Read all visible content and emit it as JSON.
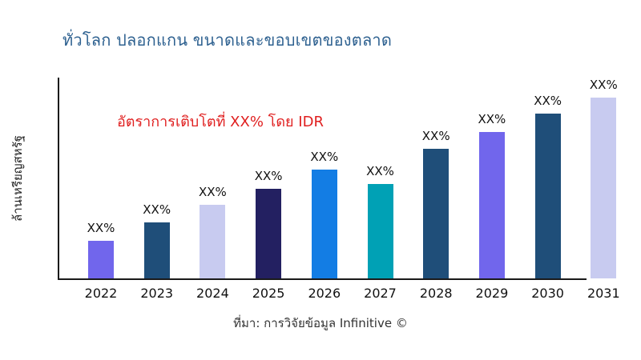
{
  "title": "ทั่วโลก ปลอกแกน ขนาดและขอบเขตของตลาด",
  "annotation": "อัตราการเติบโตที่ XX% โดย IDR",
  "ylabel": "ล้านเหรียญสหรัฐ",
  "footer": "ที่มา: การวิจัยข้อมูล Infinitive ©",
  "colors": {
    "title_text": "#2e6190",
    "annotation_text": "#e01f1f",
    "axis_line": "#1a1a1a",
    "label_text": "#111111",
    "purple": "#7166ec",
    "dark_steel_blue": "#1f4e79",
    "lavender": "#c8cbf0",
    "dark_indigo": "#232061",
    "bright_blue": "#137de4",
    "teal": "#00a1b5"
  },
  "chart_data": {
    "type": "bar",
    "title": "ทั่วโลก ปลอกแกน ขนาดและขอบเขตของตลาด",
    "xlabel": "",
    "ylabel": "ล้านเหรียญสหรัฐ",
    "categories": [
      "2022",
      "2023",
      "2024",
      "2025",
      "2026",
      "2027",
      "2028",
      "2029",
      "2030",
      "2031"
    ],
    "values": [
      18.7,
      27.9,
      36.7,
      44.6,
      54.2,
      47.0,
      64.5,
      72.9,
      82.1,
      91.2
    ],
    "values_unit": "relative bar height, % of plot area height (actual values masked on chart)",
    "value_labels": [
      "XX%",
      "XX%",
      "XX%",
      "XX%",
      "XX%",
      "XX%",
      "XX%",
      "XX%",
      "XX%",
      "XX%"
    ],
    "bar_colors": [
      "#7166ec",
      "#1f4e79",
      "#c8cbf0",
      "#232061",
      "#137de4",
      "#00a1b5",
      "#1f4e79",
      "#7166ec",
      "#1f4e79",
      "#c8cbf0"
    ],
    "annotation": "อัตราการเติบโตที่ XX% โดย IDR",
    "grid": false,
    "legend": false,
    "ylim": [
      0,
      100
    ]
  }
}
